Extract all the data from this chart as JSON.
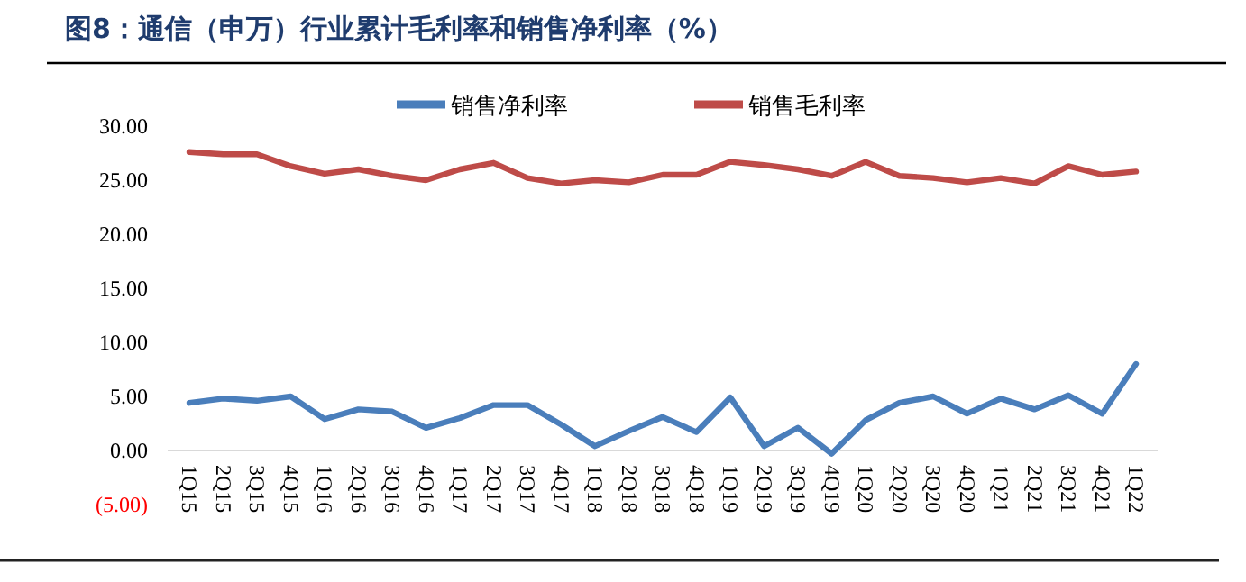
{
  "chart_data": {
    "type": "line",
    "title": "图8：通信（申万）行业累计毛利率和销售净利率（%）",
    "categories": [
      "1Q15",
      "2Q15",
      "3Q15",
      "4Q15",
      "1Q16",
      "2Q16",
      "3Q16",
      "4Q16",
      "1Q17",
      "2Q17",
      "3Q17",
      "4Q17",
      "1Q18",
      "2Q18",
      "3Q18",
      "4Q18",
      "1Q19",
      "2Q19",
      "3Q19",
      "4Q19",
      "1Q20",
      "2Q20",
      "3Q20",
      "4Q20",
      "1Q21",
      "2Q21",
      "3Q21",
      "4Q21",
      "1Q22"
    ],
    "series": [
      {
        "name": "销售净利率",
        "color": "#4a7ebb",
        "values": [
          4.4,
          4.8,
          4.6,
          5.0,
          2.9,
          3.8,
          3.6,
          2.1,
          3.0,
          4.2,
          4.2,
          2.4,
          0.4,
          1.8,
          3.1,
          1.7,
          4.9,
          0.4,
          2.1,
          -0.3,
          2.8,
          4.4,
          5.0,
          3.4,
          4.8,
          3.8,
          5.1,
          3.4,
          8.0
        ]
      },
      {
        "name": "销售毛利率",
        "color": "#be4b48",
        "values": [
          27.6,
          27.4,
          27.4,
          26.3,
          25.6,
          26.0,
          25.4,
          25.0,
          26.0,
          26.6,
          25.2,
          24.7,
          25.0,
          24.8,
          25.5,
          25.5,
          26.7,
          26.4,
          26.0,
          25.4,
          26.7,
          25.4,
          25.2,
          24.8,
          25.2,
          24.7,
          26.3,
          25.5,
          25.8
        ]
      }
    ],
    "ylim": [
      -5,
      30
    ],
    "yticks": [
      {
        "value": -5,
        "label": "(5.00)"
      },
      {
        "value": 0,
        "label": "0.00"
      },
      {
        "value": 5,
        "label": "5.00"
      },
      {
        "value": 10,
        "label": "10.00"
      },
      {
        "value": 15,
        "label": "15.00"
      },
      {
        "value": 20,
        "label": "20.00"
      },
      {
        "value": 25,
        "label": "25.00"
      },
      {
        "value": 30,
        "label": "30.00"
      }
    ],
    "legend": "top",
    "grid": false
  }
}
